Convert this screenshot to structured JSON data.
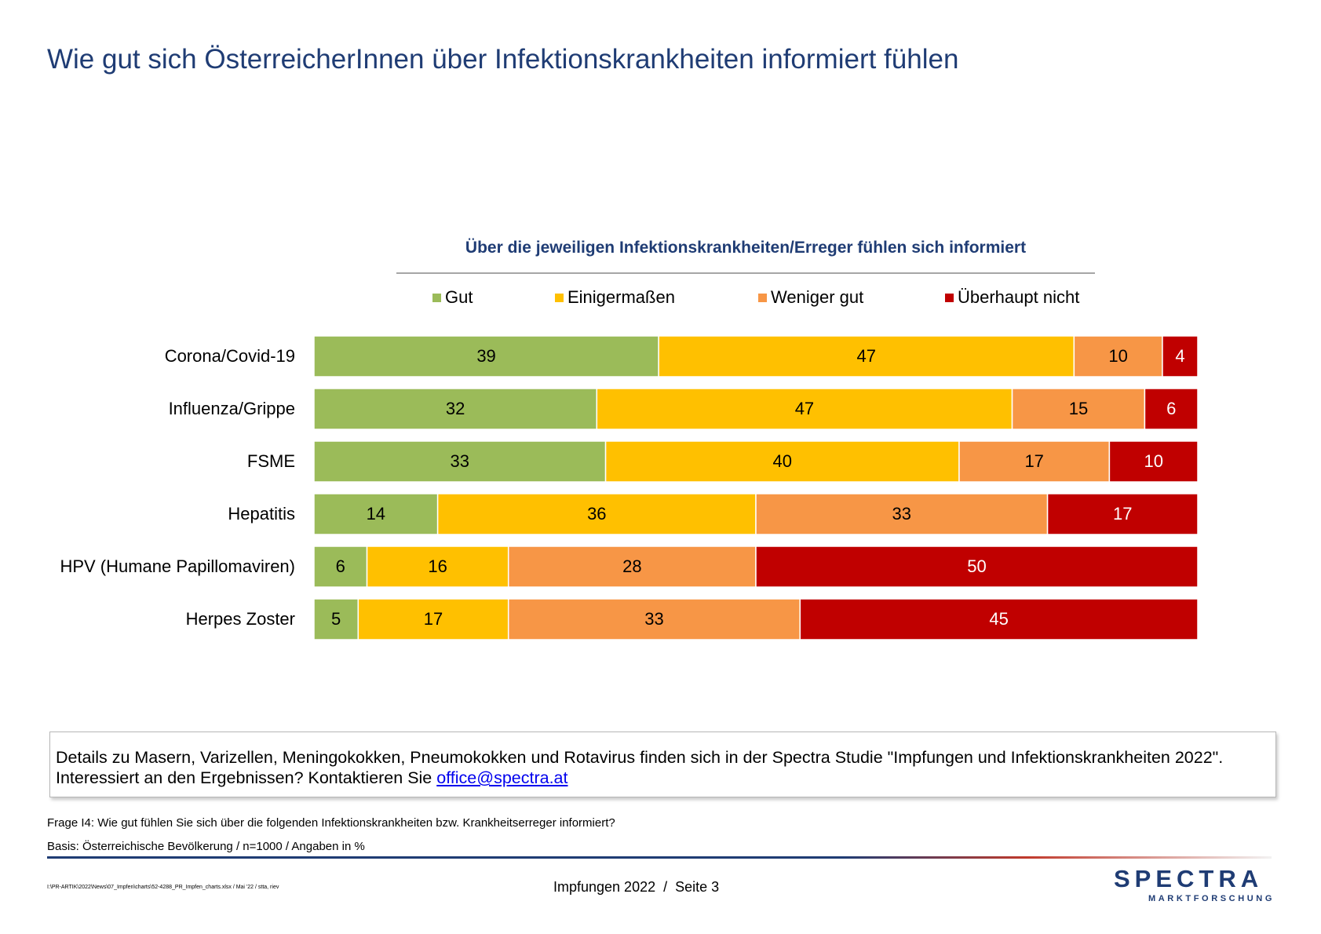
{
  "page_title": "Wie gut sich ÖsterreicherInnen über Infektionskrankheiten informiert fühlen",
  "chart_data": {
    "type": "bar",
    "orientation": "horizontal",
    "stacked": true,
    "title": "Über die jeweiligen Infektionskrankheiten/Erreger fühlen sich informiert",
    "categories": [
      "Corona/Covid-19",
      "Influenza/Grippe",
      "FSME",
      "Hepatitis",
      "HPV (Humane Papillomaviren)",
      "Herpes Zoster"
    ],
    "series": [
      {
        "name": "Gut",
        "color": "#9bbb59",
        "label_color": "#000000",
        "values": [
          39,
          32,
          33,
          14,
          6,
          5
        ]
      },
      {
        "name": "Einigermaßen",
        "color": "#ffc000",
        "label_color": "#000000",
        "values": [
          47,
          47,
          40,
          36,
          16,
          17
        ]
      },
      {
        "name": "Weniger gut",
        "color": "#f79646",
        "label_color": "#000000",
        "values": [
          10,
          15,
          17,
          33,
          28,
          33
        ]
      },
      {
        "name": "Überhaupt nicht",
        "color": "#c00000",
        "label_color": "#ffffff",
        "values": [
          4,
          6,
          10,
          17,
          50,
          45
        ]
      }
    ],
    "xlim": [
      0,
      100
    ],
    "legend_position": "top",
    "grid": false
  },
  "info_box": {
    "line1": "Details zu Masern, Varizellen, Meningokokken, Pneumokokken und Rotavirus finden sich in der Spectra Studie \"Impfungen und Infektionskrankheiten 2022\".",
    "line2_prefix": "Interessiert an den Ergebnissen? Kontaktieren Sie ",
    "email": "office@spectra.at"
  },
  "notes": {
    "question": "Frage I4: Wie gut fühlen Sie sich über die folgenden Infektionskrankheiten bzw. Krankheitserreger informiert?",
    "basis": "Basis: Österreichische Bevölkerung / n=1000 / Angaben in %"
  },
  "footer": {
    "file_path": "I:\\PR-ARTIK\\2022\\News\\07_Impfen\\charts\\52-4288_PR_Impfen_charts.xlsx / Mai '22 / stta, riev",
    "report": "Impfungen 2022",
    "separator": "/",
    "page": "Seite  3"
  },
  "logo": {
    "word": "SPECTRA",
    "sub": "MARKTFORSCHUNG"
  }
}
